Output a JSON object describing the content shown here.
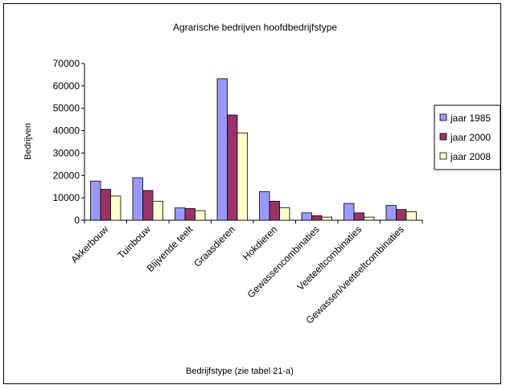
{
  "chart_data": {
    "type": "bar",
    "title": "Agrarische bedrijven hoofdbedrijfstype",
    "xlabel": "Bedrijfstype (zie tabel 21-a)",
    "ylabel": "Bedrijven",
    "ylim": [
      0,
      70000
    ],
    "yticks": [
      0,
      10000,
      20000,
      30000,
      40000,
      50000,
      60000,
      70000
    ],
    "grid": false,
    "legend_position": "right",
    "categories": [
      "Akkerbouw",
      "Tuinbouw",
      "Blijvende teelt",
      "Graasdieren",
      "Hokdieren",
      "Gewassencombinaties",
      "Veeteeltcombinaties",
      "Gewassen/veeteeltcombinaties"
    ],
    "series": [
      {
        "name": "jaar 1985",
        "color": "#9999ff",
        "values": [
          17500,
          19000,
          5500,
          63200,
          12800,
          3300,
          7500,
          6600
        ]
      },
      {
        "name": "jaar 2000",
        "color": "#993366",
        "values": [
          13800,
          13300,
          5200,
          47000,
          8500,
          2000,
          3300,
          4800
        ]
      },
      {
        "name": "jaar 2008",
        "color": "#ffffcc",
        "values": [
          10800,
          8500,
          4300,
          39000,
          5600,
          1400,
          1400,
          3800
        ]
      }
    ]
  }
}
